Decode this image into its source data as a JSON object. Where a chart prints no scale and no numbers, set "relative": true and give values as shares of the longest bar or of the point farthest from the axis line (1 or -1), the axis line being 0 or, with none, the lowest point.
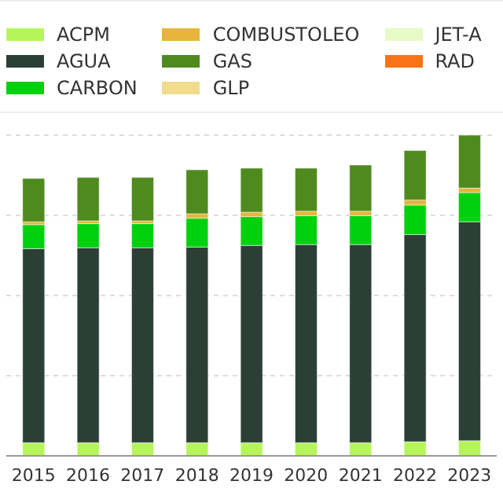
{
  "chart_data": {
    "type": "bar",
    "stacked": true,
    "relative": true,
    "grid": "y",
    "legend": "top",
    "categories": [
      "2015",
      "2016",
      "2017",
      "2018",
      "2019",
      "2020",
      "2021",
      "2022",
      "2023"
    ],
    "series": [
      {
        "name": "ACPM",
        "color": "#b5f55a",
        "values": [
          0.041,
          0.041,
          0.041,
          0.041,
          0.041,
          0.041,
          0.041,
          0.044,
          0.047
        ]
      },
      {
        "name": "AGUA",
        "color": "#2b3f36",
        "values": [
          0.605,
          0.608,
          0.608,
          0.61,
          0.615,
          0.618,
          0.618,
          0.646,
          0.683
        ]
      },
      {
        "name": "CARBON",
        "color": "#00d10f",
        "values": [
          0.075,
          0.075,
          0.075,
          0.09,
          0.09,
          0.09,
          0.09,
          0.092,
          0.091
        ]
      },
      {
        "name": "COMBUSTOLEO",
        "color": "#e8b53a",
        "values": [
          0.009,
          0.009,
          0.009,
          0.014,
          0.014,
          0.014,
          0.014,
          0.016,
          0.014
        ]
      },
      {
        "name": "GAS",
        "color": "#4f8a1f",
        "values": [
          0.135,
          0.135,
          0.135,
          0.137,
          0.137,
          0.134,
          0.144,
          0.154,
          0.165
        ]
      },
      {
        "name": "GLP",
        "color": "#f0dc8c",
        "values": [
          0,
          0,
          0,
          0,
          0,
          0,
          0,
          0,
          0
        ]
      },
      {
        "name": "JET-A",
        "color": "#e6fbc8",
        "values": [
          0,
          0,
          0,
          0,
          0,
          0,
          0,
          0,
          0
        ]
      },
      {
        "name": "RAD",
        "color": "#f97316",
        "values": [
          0,
          0,
          0,
          0,
          0,
          0,
          0,
          0,
          0
        ]
      }
    ]
  }
}
